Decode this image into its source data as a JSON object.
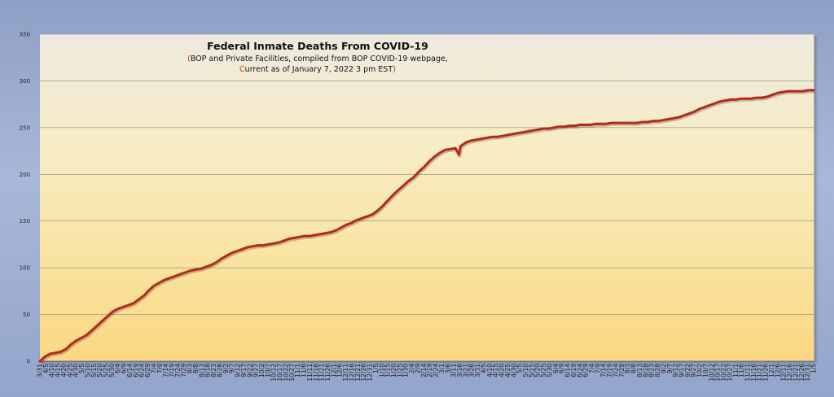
{
  "chart_data": {
    "type": "line",
    "title": "Federal Inmate Deaths From COVID-19",
    "subtitle_line1": "BOP and Private Facilities, compiled from BOP COVID-19 webpage,",
    "subtitle_line2": "Current as of January 7, 2022 3 pm EST",
    "xlabel": "",
    "ylabel": "",
    "ylim": [
      0,
      350
    ],
    "yticks": [
      0,
      50,
      100,
      150,
      200,
      250,
      300,
      350
    ],
    "grid": true,
    "line_color": "#b22a1c",
    "xtick_labels": [
      "3/31",
      "4/5",
      "4/10",
      "4/15",
      "4/20",
      "4/25",
      "4/30",
      "5/5",
      "5/10",
      "5/15",
      "5/20",
      "5/25",
      "5/30",
      "6/4",
      "6/9",
      "6/14",
      "6/19",
      "6/24",
      "6/29",
      "7/4",
      "7/9",
      "7/14",
      "7/19",
      "7/24",
      "7/29",
      "8/3",
      "8/8",
      "8/13",
      "8/18",
      "8/23",
      "8/28",
      "9/2",
      "9/7",
      "9/12",
      "9/17",
      "9/22",
      "9/27",
      "10/2",
      "10/7",
      "10/12",
      "10/17",
      "10/22",
      "10/27",
      "11/1",
      "11/6",
      "11/11",
      "11/16",
      "11/21",
      "11/26",
      "12/1",
      "12/6",
      "12/11",
      "12/16",
      "12/21",
      "12/26",
      "12/31",
      "1/5",
      "1/10",
      "1/15",
      "1/20",
      "1/25",
      "1/30",
      "2/4",
      "2/9",
      "2/14",
      "2/19",
      "2/24",
      "3/1",
      "3/6",
      "3/11",
      "3/16",
      "3/21",
      "3/26",
      "3/31",
      "4/5",
      "4/10",
      "4/15",
      "4/20",
      "4/25",
      "4/30",
      "5/5",
      "5/10",
      "5/15",
      "5/20",
      "5/25",
      "5/30",
      "6/4",
      "6/9",
      "6/14",
      "6/19",
      "6/24",
      "6/29",
      "7/4",
      "7/9",
      "7/14",
      "7/19",
      "7/24",
      "7/29",
      "8/3",
      "8/8",
      "8/13",
      "8/18",
      "8/23",
      "8/28",
      "9/2",
      "9/7",
      "9/12",
      "9/17",
      "9/22",
      "9/27",
      "10/2",
      "10/7",
      "10/12",
      "10/17",
      "10/22",
      "10/27",
      "11/1",
      "11/6",
      "11/11",
      "11/16",
      "11/21",
      "11/26",
      "12/1",
      "12/6",
      "12/11",
      "12/16",
      "12/21",
      "12/26",
      "12/31",
      "1/5"
    ],
    "series": [
      {
        "name": "",
        "points": [
          [
            0,
            0
          ],
          [
            1,
            5
          ],
          [
            2,
            8
          ],
          [
            3,
            9
          ],
          [
            4,
            10
          ],
          [
            5,
            13
          ],
          [
            6,
            18
          ],
          [
            7,
            22
          ],
          [
            8,
            25
          ],
          [
            9,
            28
          ],
          [
            10,
            33
          ],
          [
            11,
            38
          ],
          [
            12,
            43
          ],
          [
            13,
            48
          ],
          [
            14,
            53
          ],
          [
            15,
            56
          ],
          [
            16,
            58
          ],
          [
            17,
            60
          ],
          [
            18,
            62
          ],
          [
            19,
            66
          ],
          [
            20,
            70
          ],
          [
            21,
            76
          ],
          [
            22,
            81
          ],
          [
            23,
            84
          ],
          [
            24,
            87
          ],
          [
            25,
            89
          ],
          [
            26,
            91
          ],
          [
            27,
            93
          ],
          [
            28,
            95
          ],
          [
            29,
            97
          ],
          [
            30,
            98
          ],
          [
            31,
            99
          ],
          [
            32,
            101
          ],
          [
            33,
            103
          ],
          [
            34,
            106
          ],
          [
            35,
            110
          ],
          [
            36,
            113
          ],
          [
            37,
            116
          ],
          [
            38,
            118
          ],
          [
            39,
            120
          ],
          [
            40,
            122
          ],
          [
            41,
            123
          ],
          [
            42,
            124
          ],
          [
            43,
            124
          ],
          [
            44,
            125
          ],
          [
            45,
            126
          ],
          [
            46,
            127
          ],
          [
            47,
            129
          ],
          [
            48,
            131
          ],
          [
            49,
            132
          ],
          [
            50,
            133
          ],
          [
            51,
            134
          ],
          [
            52,
            134
          ],
          [
            53,
            135
          ],
          [
            54,
            136
          ],
          [
            55,
            137
          ],
          [
            56,
            138
          ],
          [
            57,
            140
          ],
          [
            58,
            143
          ],
          [
            59,
            146
          ],
          [
            60,
            148
          ],
          [
            61,
            151
          ],
          [
            62,
            153
          ],
          [
            63,
            155
          ],
          [
            64,
            157
          ],
          [
            65,
            161
          ],
          [
            66,
            166
          ],
          [
            67,
            172
          ],
          [
            68,
            178
          ],
          [
            69,
            183
          ],
          [
            70,
            188
          ],
          [
            71,
            193
          ],
          [
            72,
            197
          ],
          [
            73,
            203
          ],
          [
            74,
            208
          ],
          [
            75,
            214
          ],
          [
            76,
            219
          ],
          [
            77,
            223
          ],
          [
            78,
            226
          ],
          [
            79,
            227
          ],
          [
            80,
            228
          ],
          [
            80.7,
            221
          ],
          [
            81,
            230
          ],
          [
            82,
            234
          ],
          [
            83,
            236
          ],
          [
            84,
            237
          ],
          [
            85,
            238
          ],
          [
            86,
            239
          ],
          [
            87,
            240
          ],
          [
            88,
            240
          ],
          [
            89,
            241
          ],
          [
            90,
            242
          ],
          [
            91,
            243
          ],
          [
            92,
            244
          ],
          [
            93,
            245
          ],
          [
            94,
            246
          ],
          [
            95,
            247
          ],
          [
            96,
            248
          ],
          [
            97,
            249
          ],
          [
            98,
            249
          ],
          [
            99,
            250
          ],
          [
            100,
            251
          ],
          [
            101,
            251
          ],
          [
            102,
            252
          ],
          [
            103,
            252
          ],
          [
            104,
            253
          ],
          [
            105,
            253
          ],
          [
            106,
            253
          ],
          [
            107,
            254
          ],
          [
            108,
            254
          ],
          [
            109,
            254
          ],
          [
            110,
            255
          ],
          [
            111,
            255
          ],
          [
            112,
            255
          ],
          [
            113,
            255
          ],
          [
            114,
            255
          ],
          [
            115,
            255
          ],
          [
            116,
            256
          ],
          [
            117,
            256
          ],
          [
            118,
            257
          ],
          [
            119,
            257
          ],
          [
            120,
            258
          ],
          [
            121,
            259
          ],
          [
            122,
            260
          ],
          [
            123,
            261
          ],
          [
            124,
            263
          ],
          [
            125,
            265
          ],
          [
            126,
            267
          ],
          [
            127,
            270
          ],
          [
            128,
            272
          ],
          [
            129,
            274
          ],
          [
            130,
            276
          ],
          [
            131,
            278
          ],
          [
            132,
            279
          ],
          [
            133,
            280
          ],
          [
            134,
            280
          ],
          [
            135,
            281
          ],
          [
            136,
            281
          ],
          [
            137,
            281
          ],
          [
            138,
            282
          ],
          [
            139,
            282
          ],
          [
            140,
            283
          ],
          [
            141,
            285
          ],
          [
            142,
            287
          ],
          [
            143,
            288
          ],
          [
            144,
            289
          ],
          [
            145,
            289
          ],
          [
            146,
            289
          ],
          [
            147,
            289
          ],
          [
            148,
            290
          ],
          [
            149,
            290
          ]
        ],
        "x_range": [
          0,
          149
        ]
      }
    ]
  }
}
